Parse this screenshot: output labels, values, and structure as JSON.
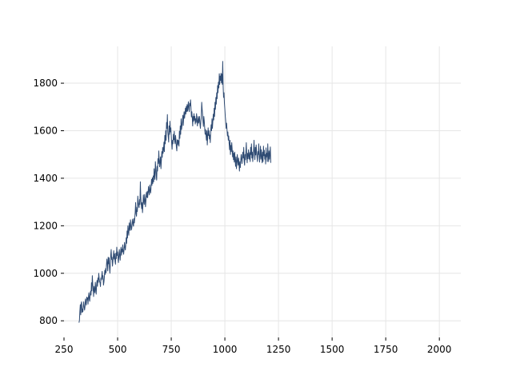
{
  "chart_data": {
    "type": "line",
    "title": "",
    "xlabel": "",
    "ylabel": "",
    "xlim": [
      250,
      2100
    ],
    "ylim": [
      730,
      1955
    ],
    "x_ticks": [
      250,
      500,
      750,
      1000,
      1250,
      1500,
      1750,
      2000
    ],
    "x_tick_labels": [
      "250",
      "500",
      "750",
      "1000",
      "1250",
      "1500",
      "1750",
      "2000"
    ],
    "y_ticks": [
      800,
      1000,
      1200,
      1400,
      1600,
      1800
    ],
    "y_tick_labels": [
      "800",
      "1000",
      "1200",
      "1400",
      "1600",
      "1800"
    ],
    "grid": true,
    "legend": false,
    "line_color": "#2f4b73",
    "grid_color": "#e6e6e6",
    "series": [
      {
        "x_start": 320,
        "x_step": 2,
        "values": [
          792,
          802,
          840,
          868,
          825,
          872,
          880,
          835,
          850,
          838,
          862,
          880,
          858,
          845,
          860,
          892,
          878,
          866,
          900,
          888,
          897,
          870,
          902,
          918,
          890,
          882,
          912,
          925,
          908,
          960,
          926,
          990,
          955,
          932,
          902,
          945,
          930,
          918,
          962,
          936,
          912,
          950,
          970,
          945,
          980,
          962,
          1000,
          978,
          965,
          960,
          944,
          980,
          972,
          990,
          1008,
          975,
          990,
          950,
          962,
          980,
          1012,
          995,
          1020,
          1002,
          1035,
          1060,
          1042,
          1010,
          1068,
          1040,
          1065,
          1025,
          1000,
          1040,
          1078,
          1100,
          1058,
          1068,
          1030,
          1050,
          1072,
          1095,
          1060,
          1082,
          1050,
          1038,
          1085,
          1062,
          1110,
          1075,
          1090,
          1062,
          1045,
          1080,
          1100,
          1070,
          1055,
          1092,
          1110,
          1076,
          1102,
          1090,
          1120,
          1092,
          1080,
          1100,
          1130,
          1110,
          1098,
          1120,
          1150,
          1126,
          1178,
          1148,
          1200,
          1176,
          1160,
          1212,
          1190,
          1180,
          1225,
          1205,
          1182,
          1190,
          1215,
          1228,
          1205,
          1198,
          1230,
          1212,
          1235,
          1258,
          1298,
          1250,
          1240,
          1278,
          1260,
          1325,
          1300,
          1282,
          1276,
          1310,
          1290,
          1385,
          1320,
          1290,
          1272,
          1298,
          1255,
          1285,
          1330,
          1300,
          1290,
          1332,
          1312,
          1280,
          1306,
          1340,
          1320,
          1345,
          1318,
          1340,
          1365,
          1342,
          1330,
          1372,
          1350,
          1338,
          1362,
          1395,
          1370,
          1402,
          1378,
          1410,
          1385,
          1440,
          1412,
          1395,
          1470,
          1442,
          1412,
          1392,
          1450,
          1430,
          1482,
          1462,
          1515,
          1470,
          1448,
          1475,
          1490,
          1440,
          1475,
          1512,
          1488,
          1530,
          1505,
          1522,
          1552,
          1512,
          1580,
          1545,
          1600,
          1560,
          1635,
          1610,
          1668,
          1595,
          1575,
          1552,
          1620,
          1585,
          1640,
          1595,
          1612,
          1580,
          1548,
          1522,
          1560,
          1545,
          1585,
          1562,
          1598,
          1555,
          1545,
          1580,
          1560,
          1530,
          1515,
          1562,
          1540,
          1560,
          1552,
          1535,
          1598,
          1568,
          1620,
          1585,
          1650,
          1605,
          1620,
          1640,
          1665,
          1622,
          1660,
          1680,
          1652,
          1672,
          1695,
          1670,
          1702,
          1680,
          1710,
          1682,
          1705,
          1722,
          1690,
          1680,
          1715,
          1705,
          1730,
          1698,
          1658,
          1680,
          1655,
          1620,
          1660,
          1640,
          1672,
          1645,
          1660,
          1628,
          1650,
          1635,
          1672,
          1648,
          1620,
          1640,
          1660,
          1632,
          1645,
          1660,
          1625,
          1610,
          1640,
          1655,
          1720,
          1692,
          1670,
          1640,
          1618,
          1660,
          1640,
          1612,
          1585,
          1605,
          1582,
          1560,
          1600,
          1540,
          1575,
          1612,
          1580,
          1600,
          1565,
          1582,
          1550,
          1598,
          1625,
          1600,
          1650,
          1610,
          1640,
          1670,
          1645,
          1695,
          1660,
          1720,
          1690,
          1740,
          1712,
          1760,
          1735,
          1790,
          1760,
          1805,
          1780,
          1840,
          1795,
          1830,
          1812,
          1842,
          1802,
          1838,
          1795,
          1892,
          1785,
          1740,
          1760,
          1715,
          1690,
          1660,
          1640,
          1610,
          1632,
          1605,
          1578,
          1595,
          1560,
          1578,
          1545,
          1520,
          1560,
          1500,
          1538,
          1512,
          1550,
          1522,
          1490,
          1515,
          1478,
          1505,
          1468,
          1510,
          1475,
          1450,
          1490,
          1440,
          1465,
          1500,
          1472,
          1455,
          1485,
          1460,
          1430,
          1470,
          1445,
          1475,
          1500,
          1480,
          1462,
          1495,
          1510,
          1485,
          1530,
          1470,
          1455,
          1500,
          1478,
          1512,
          1550,
          1488,
          1465,
          1505,
          1482,
          1520,
          1495,
          1480,
          1508,
          1470,
          1530,
          1500,
          1545,
          1485,
          1510,
          1470,
          1495,
          1520,
          1560,
          1500,
          1478,
          1530,
          1498,
          1540,
          1510,
          1488,
          1470,
          1512,
          1500,
          1545,
          1490,
          1468,
          1502,
          1535,
          1480,
          1520,
          1492,
          1465,
          1510,
          1470,
          1535,
          1495,
          1518,
          1480,
          1500,
          1460,
          1528,
          1490,
          1505,
          1470,
          1545,
          1500,
          1470,
          1515,
          1480,
          1502,
          1532,
          1465
        ]
      }
    ]
  }
}
